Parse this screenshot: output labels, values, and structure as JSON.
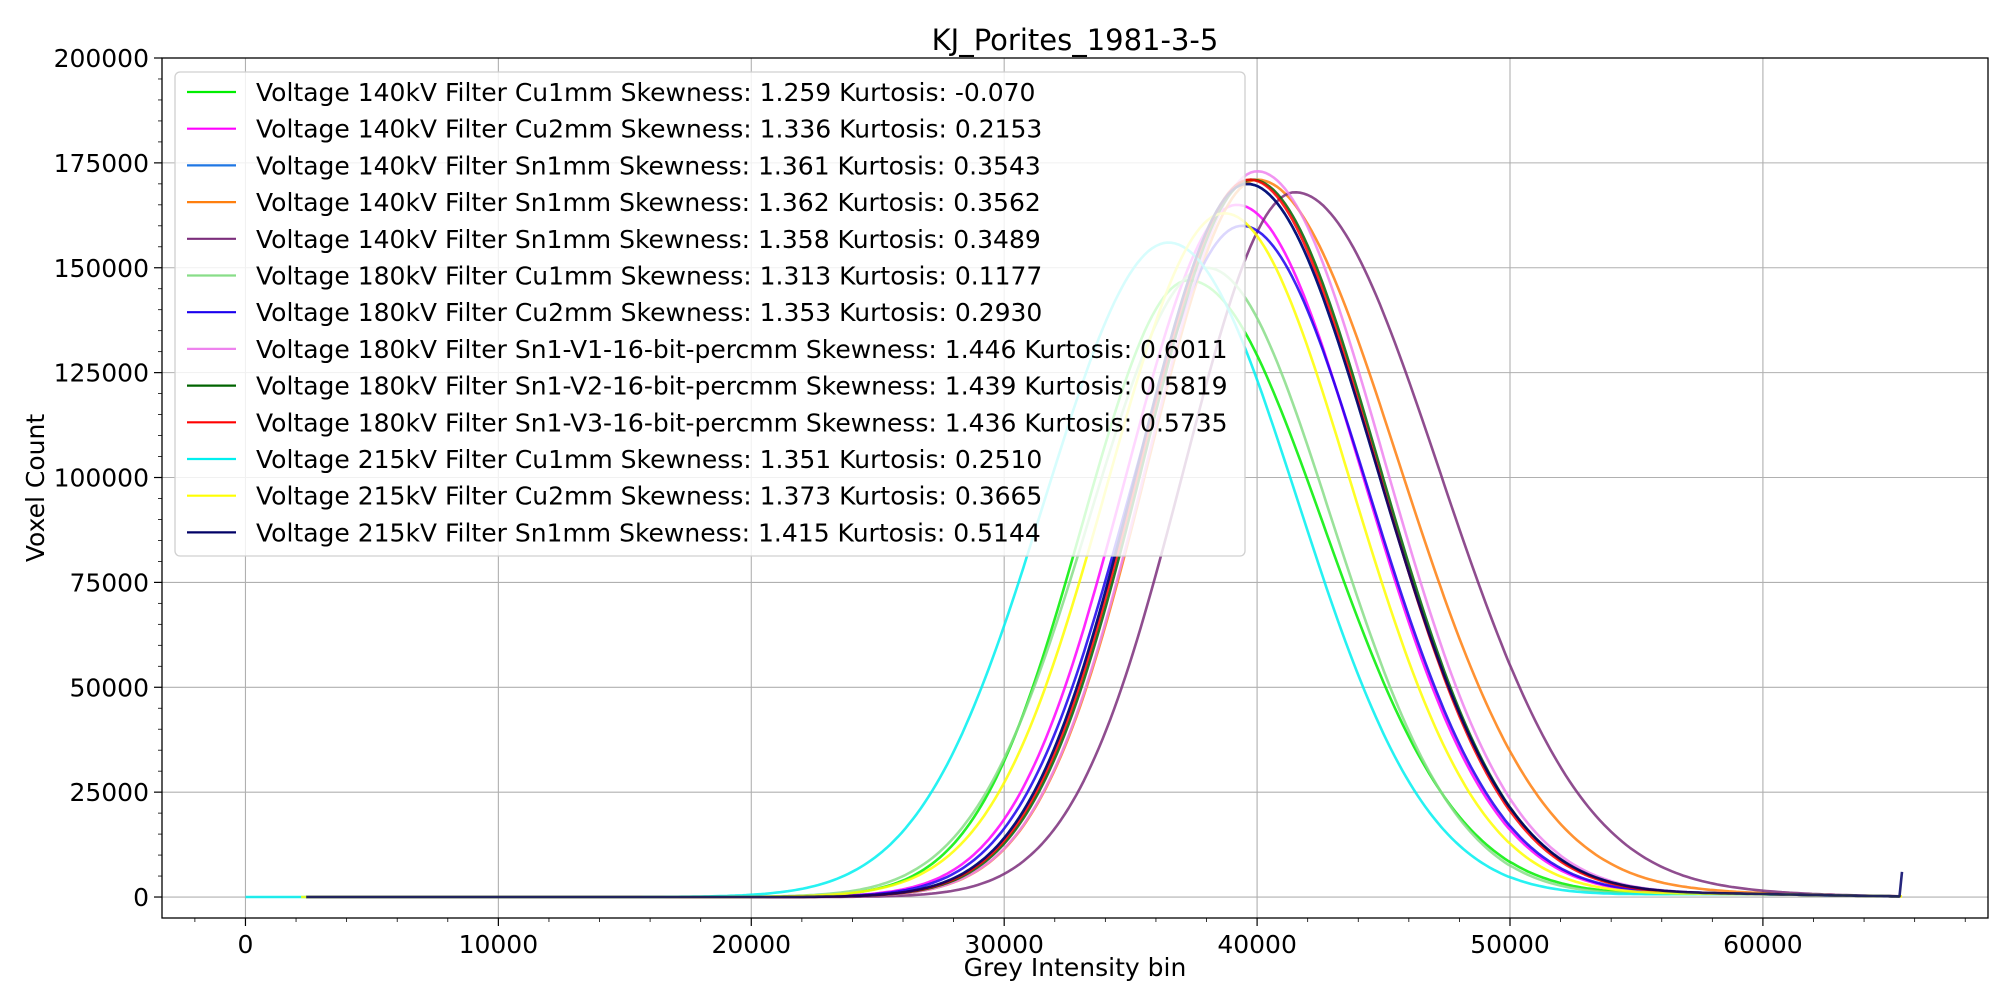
{
  "chart_data": {
    "type": "line",
    "title": "KJ_Porites_1981-3-5",
    "xlabel": "Grey Intensity bin",
    "ylabel": "Voxel Count",
    "xlim": [
      -3300,
      68900
    ],
    "ylim": [
      -5000,
      200000
    ],
    "xticks": [
      0,
      10000,
      20000,
      30000,
      40000,
      50000,
      60000
    ],
    "yticks": [
      0,
      25000,
      50000,
      75000,
      100000,
      125000,
      150000,
      175000,
      200000
    ],
    "grid": true,
    "legend_position": "top-left",
    "series": [
      {
        "name": "Voltage 140kV Filter Cu1mm Skewness: 1.259 Kurtosis: -0.070",
        "color": "#00ee00",
        "start": 2400,
        "mu": 37300,
        "sigma_left": 4200,
        "sigma_right": 5300,
        "peak": 147000
      },
      {
        "name": "Voltage 140kV Filter Cu2mm Skewness: 1.336 Kurtosis: 0.2153",
        "color": "#ff00ff",
        "start": 2400,
        "mu": 39200,
        "sigma_left": 4400,
        "sigma_right": 5000,
        "peak": 165000
      },
      {
        "name": "Voltage 140kV Filter Sn1mm Skewness: 1.361 Kurtosis: 0.3543",
        "color": "#1f77e4",
        "start": 2400,
        "mu": 39600,
        "sigma_left": 4300,
        "sigma_right": 5100,
        "peak": 170000
      },
      {
        "name": "Voltage 140kV Filter Sn1mm Skewness: 1.362 Kurtosis: 0.3562",
        "color": "#ff7f0e",
        "start": 2400,
        "mu": 40000,
        "sigma_left": 4300,
        "sigma_right": 5600,
        "peak": 171000
      },
      {
        "name": "Voltage 140kV Filter Sn1mm Skewness: 1.358 Kurtosis: 0.3489",
        "color": "#7b2e7b",
        "start": 2400,
        "mu": 41500,
        "sigma_left": 4400,
        "sigma_right": 5700,
        "peak": 168000
      },
      {
        "name": "Voltage 180kV Filter Cu1mm Skewness: 1.313 Kurtosis: 0.1177",
        "color": "#88dd88",
        "start": 2400,
        "mu": 38000,
        "sigma_left": 4600,
        "sigma_right": 4900,
        "peak": 150000
      },
      {
        "name": "Voltage 180kV Filter Cu2mm Skewness: 1.353 Kurtosis: 0.2930",
        "color": "#1a00ee",
        "start": 2400,
        "mu": 39400,
        "sigma_left": 4400,
        "sigma_right": 5000,
        "peak": 160000
      },
      {
        "name": "Voltage 180kV Filter Sn1-V1-16-bit-percmm Skewness: 1.446 Kurtosis: 0.6011",
        "color": "#ee82ee",
        "start": 2400,
        "mu": 40000,
        "sigma_left": 4300,
        "sigma_right": 5000,
        "peak": 173000
      },
      {
        "name": "Voltage 180kV Filter Sn1-V2-16-bit-percmm Skewness: 1.439 Kurtosis: 0.5819",
        "color": "#006400",
        "start": 2400,
        "mu": 39800,
        "sigma_left": 4300,
        "sigma_right": 5000,
        "peak": 171000
      },
      {
        "name": "Voltage 180kV Filter Sn1-V3-16-bit-percmm Skewness: 1.436 Kurtosis: 0.5735",
        "color": "#ff0000",
        "start": 2400,
        "mu": 39700,
        "sigma_left": 4300,
        "sigma_right": 5000,
        "peak": 171000
      },
      {
        "name": "Voltage 215kV Filter Cu1mm Skewness: 1.351 Kurtosis: 0.2510",
        "color": "#00f0f0",
        "start": 0,
        "mu": 36500,
        "sigma_left": 4900,
        "sigma_right": 5100,
        "peak": 156000
      },
      {
        "name": "Voltage 215kV Filter Cu2mm Skewness: 1.373 Kurtosis: 0.3665",
        "color": "#ffff00",
        "start": 2200,
        "mu": 38700,
        "sigma_left": 4600,
        "sigma_right": 5000,
        "peak": 163000
      },
      {
        "name": "Voltage 215kV Filter Sn1mm Skewness: 1.415 Kurtosis: 0.5144",
        "color": "#000066",
        "start": 2400,
        "mu": 39600,
        "sigma_left": 4300,
        "sigma_right": 5100,
        "peak": 170000,
        "end_spike": 6000
      }
    ]
  }
}
